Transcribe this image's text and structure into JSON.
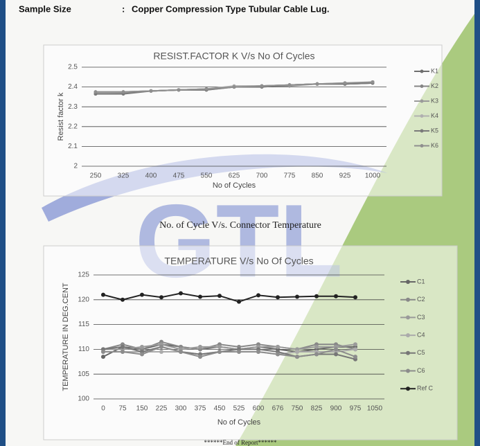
{
  "header": {
    "label": "Sample Size",
    "separator": ":",
    "value": "Copper Compression Type Tubular Cable Lug."
  },
  "watermark": "GTL",
  "caption": "No. of Cycle V/s. Connector Temperature",
  "footer": "******End of Report******",
  "chart_data": [
    {
      "type": "line",
      "title": "RESIST.FACTOR  K V/s No Of Cycles",
      "x_label": "No of Cycles",
      "y_label": "Resist factor k",
      "categories": [
        "250",
        "325",
        "400",
        "475",
        "550",
        "625",
        "700",
        "775",
        "850",
        "925",
        "1000"
      ],
      "ylim": [
        2,
        2.5
      ],
      "yticks": [
        2,
        2.1,
        2.2,
        2.3,
        2.4,
        2.5
      ],
      "grid": true,
      "series": [
        {
          "name": "K1",
          "color": "#6e6e6e",
          "values": [
            2.37,
            2.37,
            2.38,
            2.385,
            2.39,
            2.4,
            2.405,
            2.41,
            2.415,
            2.415,
            2.42
          ]
        },
        {
          "name": "K2",
          "color": "#858585",
          "values": [
            2.375,
            2.375,
            2.38,
            2.385,
            2.39,
            2.4,
            2.405,
            2.41,
            2.415,
            2.415,
            2.425
          ]
        },
        {
          "name": "K3",
          "color": "#9a9a9a",
          "values": [
            2.365,
            2.37,
            2.38,
            2.385,
            2.385,
            2.4,
            2.405,
            2.405,
            2.415,
            2.415,
            2.42
          ]
        },
        {
          "name": "K4",
          "color": "#b0b0b0",
          "values": [
            2.37,
            2.375,
            2.38,
            2.385,
            2.39,
            2.405,
            2.405,
            2.41,
            2.415,
            2.42,
            2.42
          ]
        },
        {
          "name": "K5",
          "color": "#7a7a7a",
          "values": [
            2.365,
            2.365,
            2.38,
            2.385,
            2.385,
            2.4,
            2.4,
            2.41,
            2.415,
            2.415,
            2.42
          ]
        },
        {
          "name": "K6",
          "color": "#8f8f8f",
          "values": [
            2.375,
            2.375,
            2.38,
            2.385,
            2.39,
            2.4,
            2.405,
            2.41,
            2.415,
            2.42,
            2.425
          ]
        }
      ]
    },
    {
      "type": "line",
      "title": "TEMPERATURE V/s No Of Cycles",
      "x_label": "No of Cycles",
      "y_label": "TEMPERATURE IN DEG.CENT",
      "categories": [
        "0",
        "75",
        "150",
        "225",
        "300",
        "375",
        "450",
        "525",
        "600",
        "676",
        "750",
        "825",
        "900",
        "975",
        "1050"
      ],
      "ylim": [
        100,
        125
      ],
      "yticks": [
        100,
        105,
        110,
        115,
        120,
        125
      ],
      "grid": true,
      "series": [
        {
          "name": "C1",
          "color": "#666666",
          "values": [
            108.5,
            110.5,
            110,
            111,
            110.5,
            110,
            110.5,
            110,
            110.5,
            110,
            109.5,
            110,
            110.5,
            110.5,
            null
          ]
        },
        {
          "name": "C2",
          "color": "#888888",
          "values": [
            110,
            111,
            110,
            111.5,
            110.5,
            110,
            111,
            110.5,
            111,
            110.5,
            110,
            111,
            111,
            110,
            null
          ]
        },
        {
          "name": "C3",
          "color": "#9a9a9a",
          "values": [
            110,
            110,
            110.5,
            111,
            110,
            110.5,
            110.5,
            110,
            110.5,
            110.5,
            110,
            110.5,
            110.5,
            111,
            null
          ]
        },
        {
          "name": "C4",
          "color": "#ababab",
          "values": [
            109.5,
            109.5,
            109.5,
            109.5,
            109.5,
            109,
            109.5,
            109.5,
            109.5,
            109,
            109.5,
            109.5,
            109.5,
            110,
            null
          ]
        },
        {
          "name": "C5",
          "color": "#777777",
          "values": [
            110,
            110.5,
            109.5,
            110.5,
            109.5,
            109,
            109.5,
            110,
            110,
            109.5,
            108.5,
            109,
            109,
            108,
            null
          ]
        },
        {
          "name": "C6",
          "color": "#8c8c8c",
          "values": [
            109.5,
            109.5,
            109,
            110.5,
            109.5,
            108.5,
            109.5,
            109.5,
            109.5,
            109,
            108.5,
            109,
            110,
            108.5,
            null
          ]
        },
        {
          "name": "Ref C",
          "color": "#222222",
          "values": [
            121,
            120,
            121,
            120.5,
            121.3,
            120.6,
            120.8,
            119.6,
            120.9,
            120.5,
            120.6,
            120.7,
            120.7,
            120.5,
            null
          ]
        }
      ]
    }
  ]
}
